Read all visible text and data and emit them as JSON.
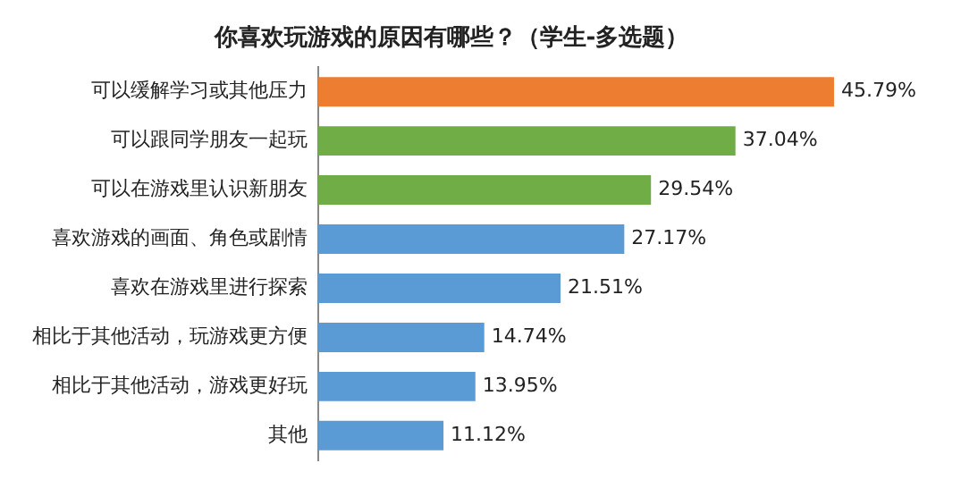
{
  "chart_data": {
    "type": "bar",
    "orientation": "horizontal",
    "title": "你喜欢玩游戏的原因有哪些？（学生-多选题）",
    "categories": [
      "可以缓解学习或其他压力",
      "可以跟同学朋友一起玩",
      "可以在游戏里认识新朋友",
      "喜欢游戏的画面、角色或剧情",
      "喜欢在游戏里进行探索",
      "相比于其他活动，玩游戏更方便",
      "相比于其他活动，游戏更好玩",
      "其他"
    ],
    "values": [
      45.79,
      37.04,
      29.54,
      27.17,
      21.51,
      14.74,
      13.95,
      11.12
    ],
    "colors": [
      "#ed7d31",
      "#70ad47",
      "#70ad47",
      "#5b9bd5",
      "#5b9bd5",
      "#5b9bd5",
      "#5b9bd5",
      "#5b9bd5"
    ],
    "value_labels": [
      "45.79%",
      "37.04%",
      "29.54%",
      "27.17%",
      "21.51%",
      "14.74%",
      "13.95%",
      "11.12%"
    ],
    "grid": false,
    "legend": false,
    "tick_labels": "y"
  }
}
